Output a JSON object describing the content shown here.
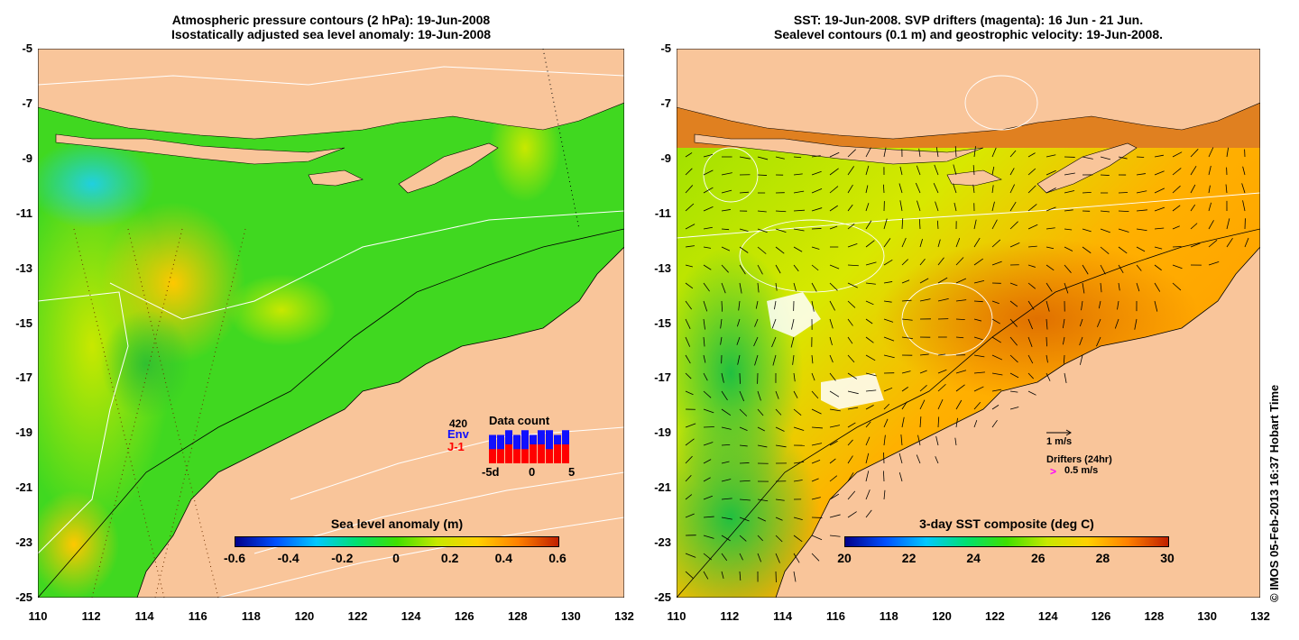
{
  "left_panel": {
    "title_line1": "Atmospheric pressure contours (2 hPa): 19-Jun-2008",
    "title_line2": "Isostatically adjusted sea level anomaly: 19-Jun-2008",
    "colorbar_title": "Sea level anomaly (m)",
    "colorbar_ticks": [
      "-0.6",
      "-0.4",
      "-0.2",
      "0",
      "0.2",
      "0.4",
      "0.6"
    ],
    "inset": {
      "count": "420",
      "env_label": "Env",
      "j1_label": "J-1",
      "title": "Data count",
      "x_ticks": [
        "-5d",
        "0",
        "5"
      ],
      "env_values": [
        6,
        6,
        7,
        6,
        7,
        6,
        7,
        7,
        6,
        7
      ],
      "j1_values": [
        3,
        3,
        4,
        3,
        3,
        4,
        4,
        3,
        4,
        4
      ]
    }
  },
  "right_panel": {
    "title_line1": "SST: 19-Jun-2008. SVP drifters (magenta): 16 Jun - 21 Jun.",
    "title_line2": "Sealevel contours (0.1 m) and geostrophic velocity: 19-Jun-2008.",
    "colorbar_title": "3-day SST composite (deg C)",
    "colorbar_ticks": [
      "20",
      "22",
      "24",
      "26",
      "28",
      "30"
    ],
    "velocity_label": "1 m/s",
    "drifters_label": "Drifters (24hr)",
    "drifter_symbol": ">",
    "drifter_speed": "0.5 m/s"
  },
  "axes": {
    "lat_ticks": [
      "-5",
      "-7",
      "-9",
      "-11",
      "-13",
      "-15",
      "-17",
      "-19",
      "-21",
      "-23",
      "-25"
    ],
    "lon_ticks": [
      "110",
      "112",
      "114",
      "116",
      "118",
      "120",
      "122",
      "124",
      "126",
      "128",
      "130",
      "132"
    ]
  },
  "credit": "© IMOS 05-Feb-2013 16:37 Hobart Time",
  "colors": {
    "land": "#f9c59a",
    "ssa_scale": [
      "#00008b",
      "#0050ff",
      "#00c8ff",
      "#00e070",
      "#40e000",
      "#c8e800",
      "#ffd000",
      "#ff8000",
      "#c02000"
    ],
    "sst_scale": [
      "#00008b",
      "#0050ff",
      "#00c8ff",
      "#00e070",
      "#40e000",
      "#c8e800",
      "#ffd000",
      "#ff8000",
      "#c02000"
    ],
    "env_bar": "#1010ff",
    "j1_bar": "#ff0000"
  }
}
